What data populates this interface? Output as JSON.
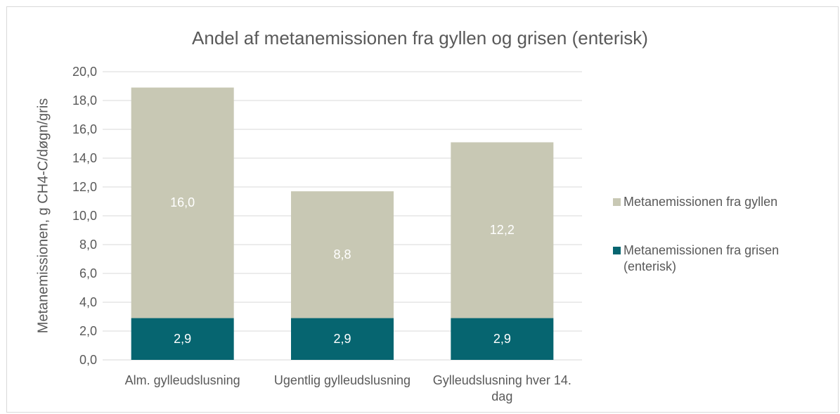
{
  "chart_data": {
    "type": "bar",
    "stacked": true,
    "title": "Andel af metanemissionen fra gyllen og grisen (enterisk)",
    "y_label": "Metanemissionen, g CH4-C/døgn/gris",
    "categories": [
      "Alm. gylleudslusning",
      "Ugentlig gylleudslusning",
      "Gylleudslusning hver 14. dag"
    ],
    "series": [
      {
        "name": "Metanemissionen fra grisen (enterisk)",
        "color": "#066570",
        "values": [
          2.9,
          2.9,
          2.9
        ],
        "value_labels": [
          "2,9",
          "2,9",
          "2,9"
        ]
      },
      {
        "name": "Metanemissionen fra gyllen",
        "color": "#c8c8b4",
        "values": [
          16.0,
          8.8,
          12.2
        ],
        "value_labels": [
          "16,0",
          "8,8",
          "12,2"
        ]
      }
    ],
    "ylim": [
      0,
      20
    ],
    "yticks": [
      {
        "value": 0,
        "label": "0,0"
      },
      {
        "value": 2,
        "label": "2,0"
      },
      {
        "value": 4,
        "label": "4,0"
      },
      {
        "value": 6,
        "label": "6,0"
      },
      {
        "value": 8,
        "label": "8,0"
      },
      {
        "value": 10,
        "label": "10,0"
      },
      {
        "value": 12,
        "label": "12,0"
      },
      {
        "value": 14,
        "label": "14,0"
      },
      {
        "value": 16,
        "label": "16,0"
      },
      {
        "value": 18,
        "label": "18,0"
      },
      {
        "value": 20,
        "label": "20,0"
      }
    ],
    "grid": true,
    "legend": "right"
  }
}
